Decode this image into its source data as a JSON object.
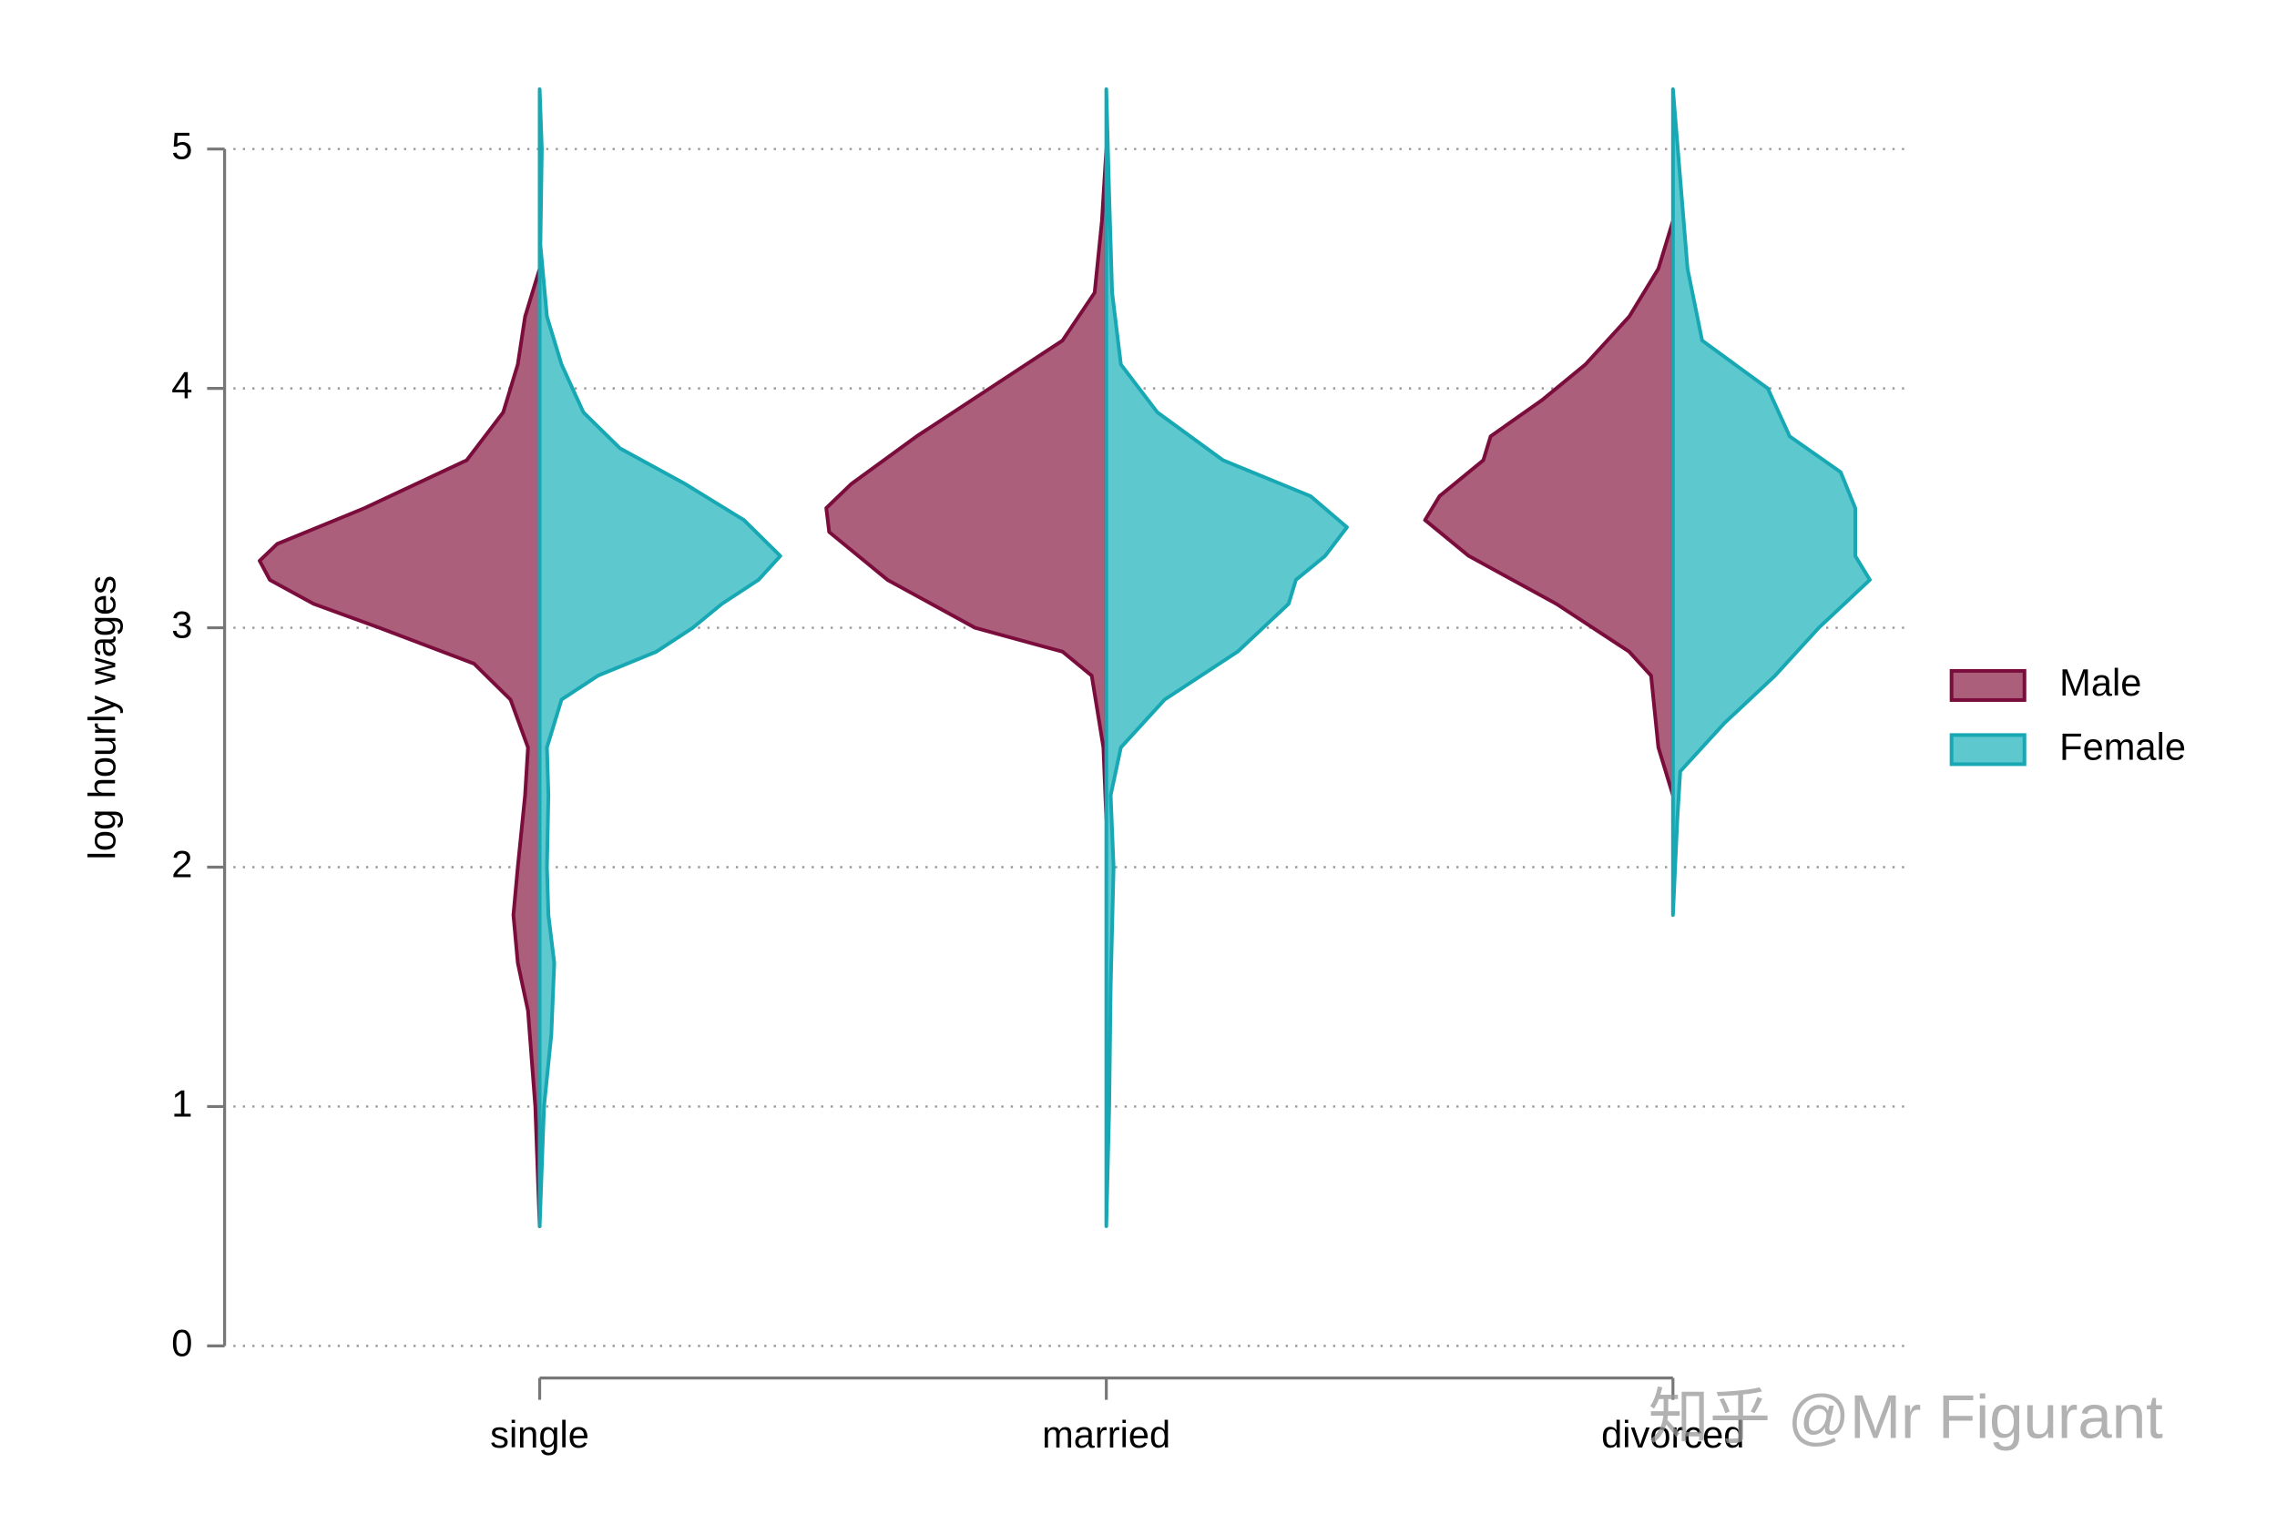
{
  "chart_data": {
    "type": "violin",
    "y_label": "log hourly wages",
    "categories": [
      "single",
      "married",
      "divorced"
    ],
    "ylim": [
      0,
      5.25
    ],
    "yticks": [
      0,
      1,
      2,
      3,
      4,
      5
    ],
    "grid": true,
    "legend": "right",
    "series": [
      {
        "name": "Male",
        "side": "left",
        "color": "#ac5f7b",
        "edge_color": "#7b0d3c",
        "groups": [
          {
            "y": [
              0.5,
              1.0,
              1.4,
              1.6,
              1.8,
              2.0,
              2.3,
              2.5,
              2.7,
              2.85,
              3.0,
              3.1,
              3.2,
              3.28,
              3.35,
              3.5,
              3.7,
              3.9,
              4.1,
              4.3,
              4.5
            ],
            "density": [
              0,
              3,
              8,
              15,
              18,
              15,
              10,
              8,
              20,
              45,
              110,
              155,
              185,
              192,
              180,
              120,
              50,
              25,
              15,
              10,
              0
            ]
          },
          {
            "y": [
              2.2,
              2.5,
              2.8,
              2.9,
              3.0,
              3.2,
              3.4,
              3.5,
              3.6,
              3.8,
              4.0,
              4.2,
              4.4,
              4.7,
              5.0
            ],
            "density": [
              0,
              2,
              10,
              30,
              90,
              150,
              190,
              192,
              175,
              130,
              80,
              30,
              8,
              3,
              0
            ]
          },
          {
            "y": [
              2.3,
              2.5,
              2.8,
              2.9,
              3.1,
              3.3,
              3.45,
              3.55,
              3.7,
              3.8,
              3.95,
              4.1,
              4.3,
              4.5,
              4.7
            ],
            "density": [
              0,
              10,
              15,
              30,
              80,
              140,
              170,
              160,
              130,
              125,
              90,
              60,
              30,
              10,
              0
            ]
          }
        ]
      },
      {
        "name": "Female",
        "side": "right",
        "color": "#5ec8cf",
        "edge_color": "#17a8b4",
        "groups": [
          {
            "y": [
              0.5,
              1.0,
              1.3,
              1.6,
              1.8,
              2.0,
              2.3,
              2.5,
              2.7,
              2.8,
              2.9,
              3.0,
              3.1,
              3.2,
              3.3,
              3.45,
              3.6,
              3.75,
              3.9,
              4.1,
              4.3,
              4.6,
              5.0,
              5.25
            ],
            "density": [
              0,
              3,
              8,
              10,
              6,
              5,
              6,
              5,
              15,
              40,
              80,
              105,
              125,
              150,
              165,
              140,
              100,
              55,
              30,
              15,
              5,
              0.5,
              1.5,
              0
            ]
          },
          {
            "y": [
              0.5,
              1.0,
              1.5,
              2.0,
              2.3,
              2.5,
              2.7,
              2.9,
              3.1,
              3.2,
              3.3,
              3.42,
              3.55,
              3.7,
              3.9,
              4.1,
              4.4,
              4.8,
              5.25
            ],
            "density": [
              0,
              2,
              3,
              5,
              3,
              10,
              40,
              90,
              125,
              130,
              150,
              165,
              140,
              80,
              35,
              10,
              4,
              2,
              0
            ]
          },
          {
            "y": [
              1.8,
              2.2,
              2.4,
              2.6,
              2.8,
              3.0,
              3.2,
              3.3,
              3.5,
              3.65,
              3.8,
              4.0,
              4.2,
              4.5,
              4.8,
              5.25
            ],
            "density": [
              0,
              3,
              5,
              35,
              70,
              100,
              135,
              125,
              125,
              115,
              80,
              65,
              20,
              10,
              6,
              0
            ]
          }
        ]
      }
    ]
  },
  "watermark": "知乎 @Mr Figurant"
}
